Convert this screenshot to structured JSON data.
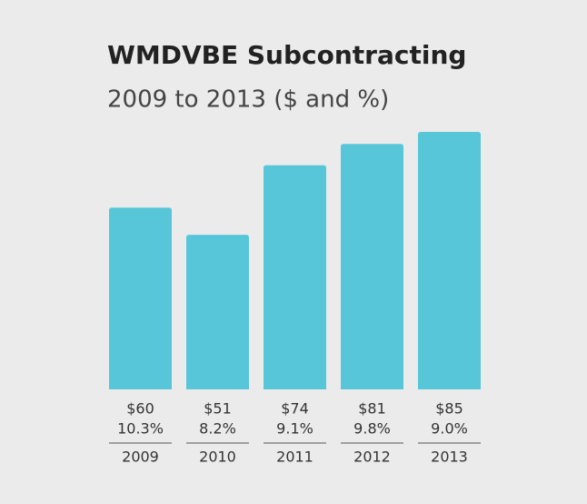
{
  "chart_data": {
    "type": "bar",
    "title": "WMDVBE Subcontracting",
    "subtitle": "2009 to 2013 ($ and %)",
    "categories": [
      "2009",
      "2010",
      "2011",
      "2012",
      "2013"
    ],
    "values": [
      60,
      51,
      74,
      81,
      85
    ],
    "value_labels": [
      "$60",
      "$51",
      "$74",
      "$81",
      "$85"
    ],
    "share_labels": [
      "10.3%",
      "8.2%",
      "9.1%",
      "9.8%",
      "9.0%"
    ],
    "color": "#56c6d8"
  }
}
